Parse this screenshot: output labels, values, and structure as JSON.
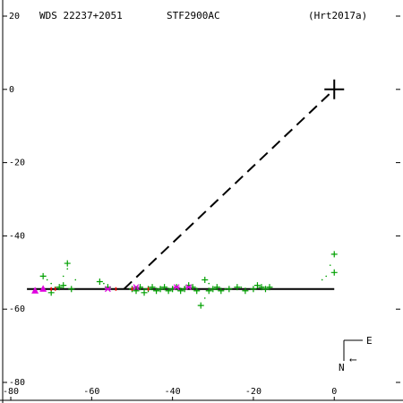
{
  "header": {
    "wds_id": "WDS 22237+2051",
    "discoverer": "STF2900AC",
    "reference": "(Hrt2017a)"
  },
  "compass": {
    "north": "N",
    "east": "E"
  },
  "chart_data": {
    "type": "scatter",
    "title": "",
    "xlabel": "",
    "ylabel": "",
    "xlim": [
      -82,
      17
    ],
    "ylim": [
      -80,
      20
    ],
    "x_ticks": [
      -80,
      -60,
      -40,
      -20,
      0
    ],
    "x_tick_labels": [
      "-80",
      "-60",
      "-40",
      "-20",
      "0"
    ],
    "y_ticks": [
      20,
      0,
      -20,
      -40,
      -60,
      -80
    ],
    "y_tick_labels": [
      "20",
      "0",
      "-20",
      "-40",
      "-60",
      "-80"
    ],
    "primary": {
      "x": 0,
      "y": 0,
      "marker": "large-plus"
    },
    "fit_line": {
      "x": [
        -76,
        0
      ],
      "y": [
        -54.5,
        -54.5
      ],
      "color": "#000000",
      "style": "solid"
    },
    "connector": {
      "x": [
        -52,
        0
      ],
      "y": [
        -54.5,
        0
      ],
      "color": "#000000",
      "style": "dashed"
    },
    "colors": {
      "green": "#00a000",
      "magenta": "#e000e0",
      "red": "#ff0000"
    },
    "series": [
      {
        "marker": "plus",
        "color": "green",
        "x": [
          -72,
          -70,
          -68,
          -67,
          -66,
          -65,
          -58,
          -56,
          -50,
          -49,
          -48,
          -47,
          -46,
          -45,
          -44,
          -43,
          -42,
          -41,
          -40,
          -39,
          -38,
          -37,
          -36,
          -35,
          -34,
          -33,
          -32,
          -31,
          -30,
          -29,
          -28,
          -26,
          -24,
          -22,
          -20,
          -19,
          -18,
          -17,
          -16,
          0,
          0
        ],
        "y": [
          -51,
          -55.5,
          -54,
          -53.5,
          -47.5,
          -54.5,
          -52.5,
          -54,
          -54.5,
          -55,
          -54,
          -55.5,
          -54.5,
          -54,
          -55,
          -54.5,
          -54,
          -55,
          -54.5,
          -54,
          -55,
          -54.5,
          -53.5,
          -54,
          -55,
          -59,
          -52,
          -55,
          -54.5,
          -54,
          -55,
          -54.5,
          -54,
          -55,
          -54.5,
          -53.5,
          -54,
          -54.5,
          -54,
          -45,
          -50
        ]
      },
      {
        "marker": "triangle",
        "color": "magenta",
        "x": [
          -74,
          -72
        ],
        "y": [
          -55,
          -54.5
        ]
      },
      {
        "marker": "cross",
        "color": "magenta",
        "x": [
          -56,
          -49,
          -39,
          -36
        ],
        "y": [
          -54.5,
          -54,
          -54,
          -54
        ]
      },
      {
        "marker": "dot",
        "color": "green",
        "x": [
          -71,
          -70,
          -69,
          -67,
          -66,
          -64,
          -57,
          -49,
          -47,
          -43,
          -40,
          -37,
          -34,
          -32,
          -31,
          -27,
          -23,
          -3,
          -2,
          -1
        ],
        "y": [
          -52,
          -53,
          -54,
          -51,
          -49,
          -52,
          -53,
          -54,
          -54.5,
          -54,
          -54.5,
          -54,
          -54.5,
          -57,
          -53,
          -54.5,
          -54,
          -52,
          -51,
          -48
        ]
      },
      {
        "marker": "tick",
        "color": "red",
        "x": [
          -70,
          -69,
          -54,
          -50,
          -46
        ],
        "y": [
          -54.5,
          -54.5,
          -54.5,
          -54.5,
          -54.5
        ]
      }
    ]
  }
}
